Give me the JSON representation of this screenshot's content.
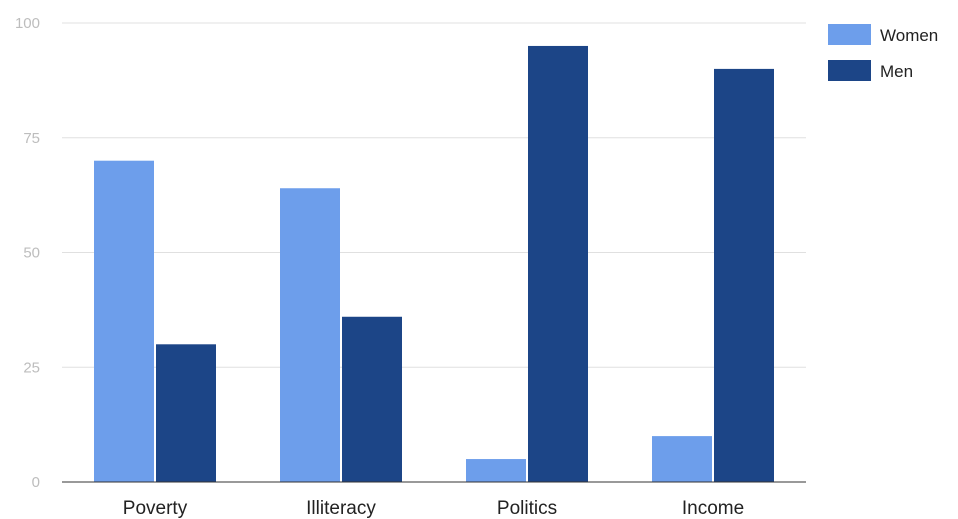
{
  "chart_data": {
    "type": "bar",
    "categories": [
      "Poverty",
      "Illiteracy",
      "Politics",
      "Income"
    ],
    "series": [
      {
        "name": "Women",
        "values": [
          70,
          64,
          5,
          10
        ],
        "color": "#6d9eeb"
      },
      {
        "name": "Men",
        "values": [
          30,
          36,
          95,
          90
        ],
        "color": "#1c4587"
      }
    ],
    "yticks": [
      0,
      25,
      50,
      75,
      100
    ],
    "ylim": [
      0,
      100
    ],
    "grid": true,
    "legend_position": "top-right"
  }
}
